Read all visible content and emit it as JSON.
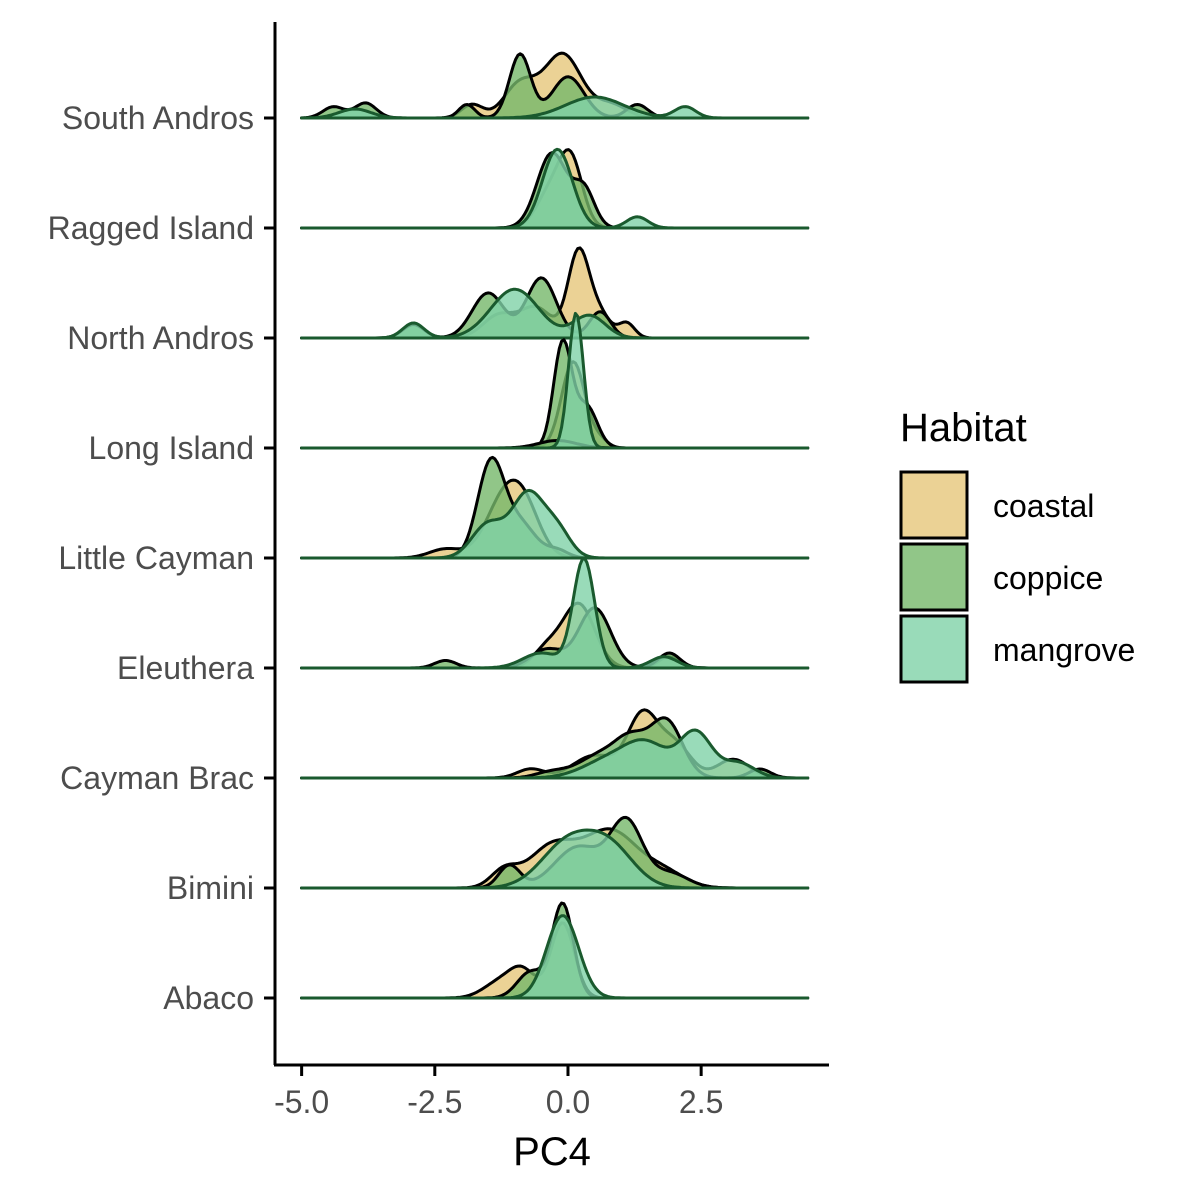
{
  "chart_data": {
    "type": "ridgeline",
    "title": "",
    "xlabel": "PC4",
    "ylabel": "",
    "xlim": [
      -5.5,
      4.9
    ],
    "x_ticks": [
      -5.0,
      -2.5,
      0.0,
      2.5
    ],
    "x_tick_labels": [
      "-5.0",
      "-2.5",
      "0.0",
      "2.5"
    ],
    "categories": [
      "Abaco",
      "Bimini",
      "Cayman Brac",
      "Eleuthera",
      "Little Cayman",
      "Long Island",
      "North Andros",
      "Ragged Island",
      "South Andros"
    ],
    "legend": {
      "title": "Habitat",
      "position": "right",
      "entries": [
        "coastal",
        "coppice",
        "mangrove"
      ]
    },
    "colors": {
      "coastal": "#E6C77A",
      "coppice": "#76B86A",
      "mangrove": "#80D2A8"
    },
    "density_range": [
      -5.0,
      4.5
    ],
    "series": [
      {
        "category": "Abaco",
        "habitat": "coastal",
        "peaks": [
          [
            -1.3,
            0.3,
            0.2
          ],
          [
            -0.85,
            0.25,
            0.35
          ],
          [
            -0.1,
            0.22,
            1.0
          ]
        ]
      },
      {
        "category": "Abaco",
        "habitat": "coppice",
        "peaks": [
          [
            -0.7,
            0.25,
            0.35
          ],
          [
            -0.1,
            0.2,
            1.25
          ]
        ]
      },
      {
        "category": "Abaco",
        "habitat": "mangrove",
        "peaks": [
          [
            -0.1,
            0.3,
            1.1
          ]
        ]
      },
      {
        "category": "Bimini",
        "habitat": "coastal",
        "peaks": [
          [
            -1.2,
            0.25,
            0.22
          ],
          [
            -0.3,
            0.45,
            0.55
          ],
          [
            0.8,
            0.5,
            0.75
          ],
          [
            1.8,
            0.4,
            0.2
          ]
        ]
      },
      {
        "category": "Bimini",
        "habitat": "coppice",
        "peaks": [
          [
            -1.1,
            0.2,
            0.3
          ],
          [
            0.2,
            0.45,
            0.55
          ],
          [
            1.1,
            0.3,
            0.85
          ],
          [
            1.9,
            0.35,
            0.2
          ]
        ]
      },
      {
        "category": "Bimini",
        "habitat": "mangrove",
        "peaks": [
          [
            0.0,
            0.5,
            0.6
          ],
          [
            0.8,
            0.45,
            0.5
          ]
        ]
      },
      {
        "category": "Cayman Brac",
        "habitat": "coastal",
        "peaks": [
          [
            -0.7,
            0.25,
            0.12
          ],
          [
            0.5,
            0.4,
            0.3
          ],
          [
            1.4,
            0.28,
            0.82
          ],
          [
            2.0,
            0.3,
            0.45
          ],
          [
            3.1,
            0.3,
            0.25
          ]
        ]
      },
      {
        "category": "Cayman Brac",
        "habitat": "coppice",
        "peaks": [
          [
            -0.3,
            0.3,
            0.08
          ],
          [
            0.6,
            0.4,
            0.3
          ],
          [
            1.2,
            0.3,
            0.45
          ],
          [
            1.85,
            0.3,
            0.75
          ],
          [
            3.6,
            0.2,
            0.12
          ]
        ]
      },
      {
        "category": "Cayman Brac",
        "habitat": "mangrove",
        "peaks": [
          [
            0.8,
            0.5,
            0.25
          ],
          [
            1.5,
            0.4,
            0.4
          ],
          [
            2.4,
            0.3,
            0.6
          ],
          [
            3.2,
            0.3,
            0.2
          ]
        ]
      },
      {
        "category": "Eleuthera",
        "habitat": "coastal",
        "peaks": [
          [
            -0.4,
            0.25,
            0.25
          ],
          [
            0.2,
            0.3,
            0.85
          ],
          [
            1.9,
            0.2,
            0.15
          ]
        ]
      },
      {
        "category": "Eleuthera",
        "habitat": "coppice",
        "peaks": [
          [
            -2.3,
            0.2,
            0.1
          ],
          [
            -0.4,
            0.3,
            0.25
          ],
          [
            0.5,
            0.3,
            0.8
          ],
          [
            1.9,
            0.2,
            0.2
          ]
        ]
      },
      {
        "category": "Eleuthera",
        "habitat": "mangrove",
        "peaks": [
          [
            -0.5,
            0.35,
            0.2
          ],
          [
            0.3,
            0.2,
            1.45
          ],
          [
            1.8,
            0.25,
            0.15
          ]
        ]
      },
      {
        "category": "Little Cayman",
        "habitat": "coastal",
        "peaks": [
          [
            -2.3,
            0.3,
            0.12
          ],
          [
            -1.2,
            0.35,
            0.75
          ],
          [
            -0.8,
            0.3,
            0.5
          ]
        ]
      },
      {
        "category": "Little Cayman",
        "habitat": "coppice",
        "peaks": [
          [
            -1.45,
            0.25,
            1.25
          ],
          [
            -0.9,
            0.3,
            0.45
          ],
          [
            -0.2,
            0.2,
            0.1
          ]
        ]
      },
      {
        "category": "Little Cayman",
        "habitat": "mangrove",
        "peaks": [
          [
            -1.5,
            0.3,
            0.45
          ],
          [
            -0.75,
            0.3,
            0.85
          ],
          [
            -0.2,
            0.25,
            0.35
          ]
        ]
      },
      {
        "category": "Long Island",
        "habitat": "coastal",
        "peaks": [
          [
            0.1,
            0.22,
            1.15
          ],
          [
            0.6,
            0.15,
            0.1
          ]
        ]
      },
      {
        "category": "Long Island",
        "habitat": "coppice",
        "peaks": [
          [
            -0.1,
            0.17,
            1.4
          ],
          [
            0.35,
            0.2,
            0.55
          ]
        ]
      },
      {
        "category": "Long Island",
        "habitat": "mangrove",
        "peaks": [
          [
            0.15,
            0.14,
            1.8
          ]
        ]
      },
      {
        "category": "North Andros",
        "habitat": "coastal",
        "peaks": [
          [
            -1.3,
            0.3,
            0.3
          ],
          [
            -0.6,
            0.3,
            0.4
          ],
          [
            0.2,
            0.2,
            1.15
          ],
          [
            0.6,
            0.2,
            0.3
          ],
          [
            1.1,
            0.15,
            0.2
          ]
        ]
      },
      {
        "category": "North Andros",
        "habitat": "coppice",
        "peaks": [
          [
            -2.9,
            0.2,
            0.18
          ],
          [
            -1.5,
            0.3,
            0.6
          ],
          [
            -0.5,
            0.28,
            0.8
          ],
          [
            0.6,
            0.2,
            0.35
          ]
        ]
      },
      {
        "category": "North Andros",
        "habitat": "mangrove",
        "peaks": [
          [
            -2.9,
            0.2,
            0.2
          ],
          [
            -1.0,
            0.45,
            0.65
          ],
          [
            0.4,
            0.3,
            0.3
          ]
        ]
      },
      {
        "category": "Ragged Island",
        "habitat": "coastal",
        "peaks": [
          [
            -0.35,
            0.25,
            0.45
          ],
          [
            0.05,
            0.22,
            0.9
          ]
        ]
      },
      {
        "category": "Ragged Island",
        "habitat": "coppice",
        "peaks": [
          [
            -0.3,
            0.28,
            1.0
          ],
          [
            0.3,
            0.2,
            0.5
          ]
        ]
      },
      {
        "category": "Ragged Island",
        "habitat": "mangrove",
        "peaks": [
          [
            -0.2,
            0.28,
            1.05
          ],
          [
            1.3,
            0.2,
            0.15
          ]
        ]
      },
      {
        "category": "South Andros",
        "habitat": "coastal",
        "peaks": [
          [
            -1.8,
            0.2,
            0.18
          ],
          [
            -0.9,
            0.3,
            0.45
          ],
          [
            -0.1,
            0.35,
            0.85
          ],
          [
            0.8,
            0.3,
            0.18
          ]
        ]
      },
      {
        "category": "South Andros",
        "habitat": "coppice",
        "peaks": [
          [
            -4.4,
            0.2,
            0.15
          ],
          [
            -3.8,
            0.2,
            0.2
          ],
          [
            -1.9,
            0.15,
            0.18
          ],
          [
            -0.9,
            0.2,
            0.85
          ],
          [
            0.0,
            0.3,
            0.55
          ],
          [
            1.3,
            0.2,
            0.18
          ]
        ]
      },
      {
        "category": "South Andros",
        "habitat": "mangrove",
        "peaks": [
          [
            -4.0,
            0.3,
            0.12
          ],
          [
            0.5,
            0.55,
            0.28
          ],
          [
            2.2,
            0.2,
            0.15
          ]
        ]
      },
      {
        "category": "Long Island",
        "habitat": "coppice",
        "peaks": [
          [
            -0.2,
            0.35,
            0.1
          ]
        ]
      }
    ]
  }
}
